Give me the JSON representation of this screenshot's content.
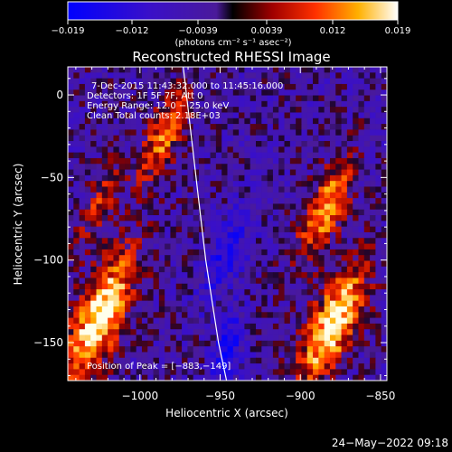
{
  "colorbar": {
    "tick_labels": [
      "−0.019",
      "−0.012",
      "−0.0039",
      "0.0039",
      "0.012",
      "0.019"
    ],
    "units": "(photons cm⁻² s⁻¹ asec⁻²)"
  },
  "chart_data": {
    "type": "heatmap",
    "title": "Reconstructed RHESSI Image",
    "xlabel": "Heliocentric X (arcsec)",
    "ylabel": "Heliocentric Y (arcsec)",
    "xlim": [
      -1045,
      -846
    ],
    "ylim": [
      -173,
      17
    ],
    "x_ticks": [
      -1000,
      -950,
      -900,
      -850
    ],
    "x_tick_labels": [
      "−1000",
      "−950",
      "−900",
      "−850"
    ],
    "y_ticks": [
      0,
      -50,
      -100,
      -150
    ],
    "y_tick_labels": [
      "0",
      "−50",
      "−100",
      "−150"
    ],
    "colorscale": {
      "min": -0.019,
      "max": 0.019
    },
    "solar_limb": [
      [
        -973,
        17
      ],
      [
        -971,
        0
      ],
      [
        -968,
        -25
      ],
      [
        -965,
        -50
      ],
      [
        -962,
        -75
      ],
      [
        -959,
        -100
      ],
      [
        -955,
        -125
      ],
      [
        -951,
        -150
      ],
      [
        -946,
        -173
      ]
    ],
    "annotations": [
      "7-Dec-2015 11:43:32.000 to 11:45:16.000",
      "Detectors: 1F 5F 7F, Att 0",
      "Energy Range: 12.0 − 25.0 keV",
      "Clean    Total counts: 2.18E+03"
    ],
    "peak_label": "Position of Peak = [−883,−149]",
    "peak_position": [
      -883,
      -149
    ]
  },
  "footer": {
    "timestamp": "24−May−2022 09:18"
  }
}
